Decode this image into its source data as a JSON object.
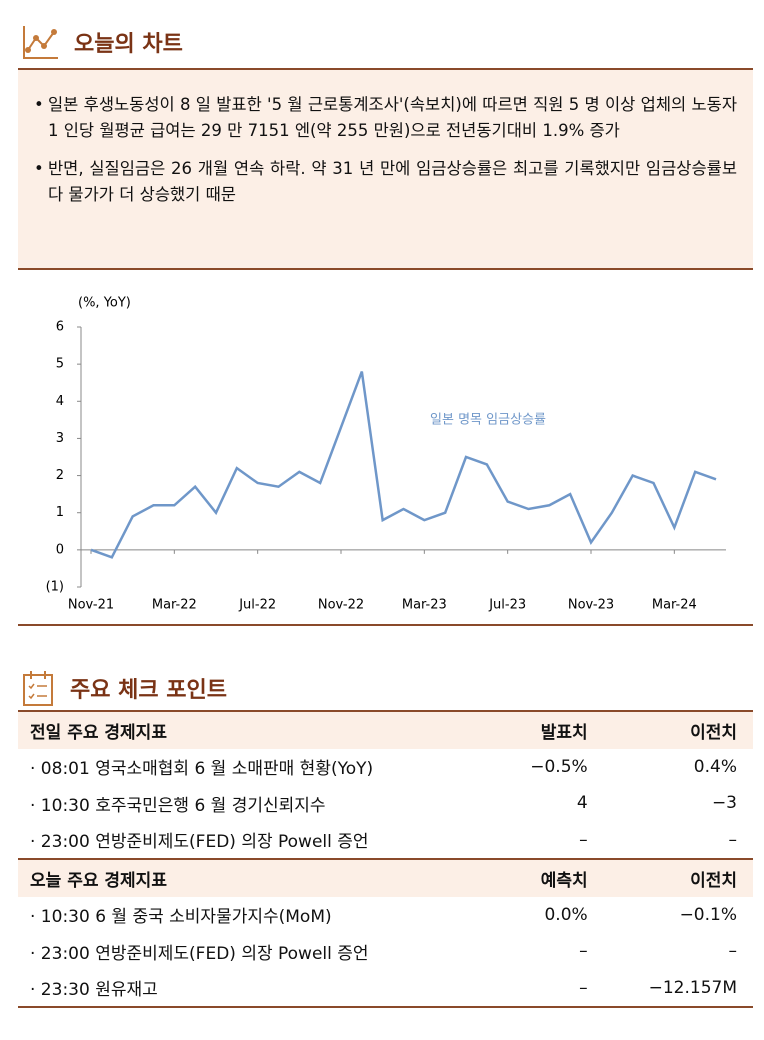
{
  "header": {
    "title": "오늘의 차트"
  },
  "bullets": [
    "일본 후생노동성이 8 일 발표한 '5 월 근로통계조사'(속보치)에 따르면 직원 5 명 이상 업체의 노동자 1 인당 월평균 급여는 29 만 7151 엔(약 255 만원)으로 전년동기대비 1.9% 증가",
    "반면, 실질임금은 26 개월 연속 하락. 약 31 년 만에 임금상승률은 최고를 기록했지만 임금상승률보다 물가가 더 상승했기 때문"
  ],
  "chart_data": {
    "type": "line",
    "y_label": "(%, YoY)",
    "categories": [
      "Nov-21",
      null,
      null,
      null,
      "Mar-22",
      null,
      null,
      null,
      "Jul-22",
      null,
      null,
      null,
      "Nov-22",
      null,
      null,
      null,
      "Mar-23",
      null,
      null,
      null,
      "Jul-23",
      null,
      null,
      null,
      "Nov-23",
      null,
      null,
      null,
      "Mar-24",
      null,
      null
    ],
    "series": [
      {
        "name": "일본 명목 임금상승률",
        "color": "#6f97c9",
        "values": [
          0,
          -0.2,
          0.9,
          1.2,
          1.2,
          1.7,
          1.0,
          2.2,
          1.8,
          1.7,
          2.1,
          1.8,
          3.3,
          4.8,
          0.8,
          1.1,
          0.8,
          1.0,
          2.5,
          2.3,
          1.3,
          1.1,
          1.2,
          1.5,
          0.2,
          1.0,
          2.0,
          1.8,
          0.6,
          2.1,
          1.9
        ]
      }
    ],
    "ylim": [
      -1,
      6
    ],
    "yticks": [
      {
        "value": -1,
        "label": "(1)"
      },
      0,
      1,
      2,
      3,
      4,
      5,
      6
    ]
  },
  "checkpoint": {
    "title": "주요 체크 포인트",
    "tables": [
      {
        "columns": [
          "전일 주요 경제지표",
          "발표치",
          "이전치"
        ],
        "rows": [
          [
            "· 08:01 영국소매협회 6 월 소매판매 현황(YoY)",
            "−0.5%",
            "0.4%"
          ],
          [
            "· 10:30 호주국민은행 6 월 경기신뢰지수",
            "4",
            "−3"
          ],
          [
            "· 23:00 연방준비제도(FED) 의장 Powell 증언",
            "–",
            "–"
          ]
        ]
      },
      {
        "columns": [
          "오늘 주요 경제지표",
          "예측치",
          "이전치"
        ],
        "rows": [
          [
            "· 10:30 6 월 중국 소비자물가지수(MoM)",
            "0.0%",
            "−0.1%"
          ],
          [
            "· 23:00 연방준비제도(FED) 의장 Powell 증언",
            "–",
            "–"
          ],
          [
            "· 23:30 원유재고",
            "–",
            "−12.157M"
          ]
        ]
      }
    ]
  }
}
